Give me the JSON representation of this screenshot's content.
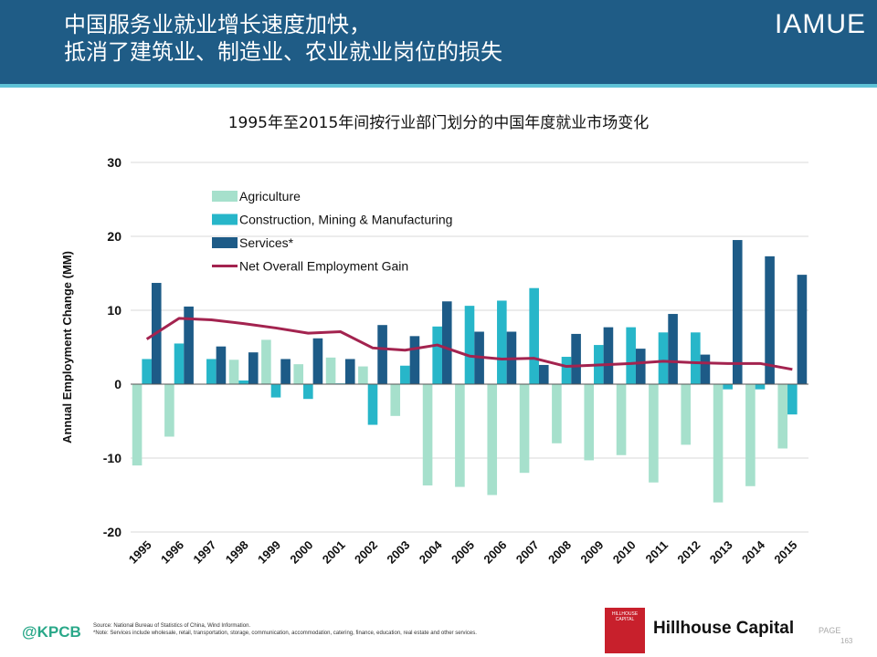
{
  "header": {
    "title_line1": "中国服务业就业增长速度加快，",
    "title_line2": "抵消了建筑业、制造业、农业就业岗位的损失",
    "brand": "IAMUE"
  },
  "colors": {
    "agriculture": "#a6e0cc",
    "construction": "#27b6c9",
    "services": "#1d5b87",
    "net": "#a3234f"
  },
  "chart_data": {
    "type": "bar",
    "title": "1995年至2015年间按行业部门划分的中国年度就业市场变化",
    "ylabel": "Annual Employment Change (MM)",
    "xlabel": "",
    "ylim": [
      -20,
      30
    ],
    "yticks": [
      -20,
      -10,
      0,
      10,
      20,
      30
    ],
    "grid": true,
    "legend_position": "top-left",
    "categories": [
      "1995",
      "1996",
      "1997",
      "1998",
      "1999",
      "2000",
      "2001",
      "2002",
      "2003",
      "2004",
      "2005",
      "2006",
      "2007",
      "2008",
      "2009",
      "2010",
      "2011",
      "2012",
      "2013",
      "2014",
      "2015"
    ],
    "series": [
      {
        "name": "Agriculture",
        "type": "bar",
        "values": [
          -11.0,
          -7.1,
          0,
          3.3,
          6.0,
          2.7,
          3.6,
          2.4,
          -4.3,
          -13.7,
          -13.9,
          -15.0,
          -12.0,
          -8.0,
          -10.3,
          -9.6,
          -13.3,
          -8.2,
          -16.0,
          -13.8,
          -8.7
        ]
      },
      {
        "name": "Construction, Mining & Manufacturing",
        "type": "bar",
        "values": [
          3.4,
          5.5,
          3.4,
          0.5,
          -1.8,
          -2.0,
          0.1,
          -5.5,
          2.5,
          7.8,
          10.6,
          11.3,
          13.0,
          3.7,
          5.3,
          7.7,
          7.0,
          7.0,
          -0.7,
          -0.7,
          -4.1
        ]
      },
      {
        "name": "Services*",
        "type": "bar",
        "values": [
          13.7,
          10.5,
          5.1,
          4.3,
          3.4,
          6.2,
          3.4,
          8.0,
          6.5,
          11.2,
          7.1,
          7.1,
          2.6,
          6.8,
          7.7,
          4.8,
          9.5,
          4.0,
          19.5,
          17.3,
          14.8
        ]
      },
      {
        "name": "Net Overall Employment Gain",
        "type": "line",
        "values": [
          6.1,
          8.9,
          8.7,
          8.2,
          7.6,
          6.9,
          7.1,
          4.9,
          4.6,
          5.3,
          3.8,
          3.4,
          3.5,
          2.4,
          2.6,
          2.8,
          3.1,
          2.9,
          2.8,
          2.8,
          2.0
        ]
      }
    ]
  },
  "footer": {
    "kpcb": "@KPCB",
    "source_line1": "Source: National Bureau of Statistics of China, Wind Information.",
    "source_line2": "*Note: Services include wholesale, retail, transportation, storage, communication, accommodation, catering, finance, education, real estate and other services.",
    "logo_text": "HILLHOUSE CAPITAL",
    "company": "Hillhouse Capital",
    "page_label": "PAGE",
    "page_number": "163"
  }
}
